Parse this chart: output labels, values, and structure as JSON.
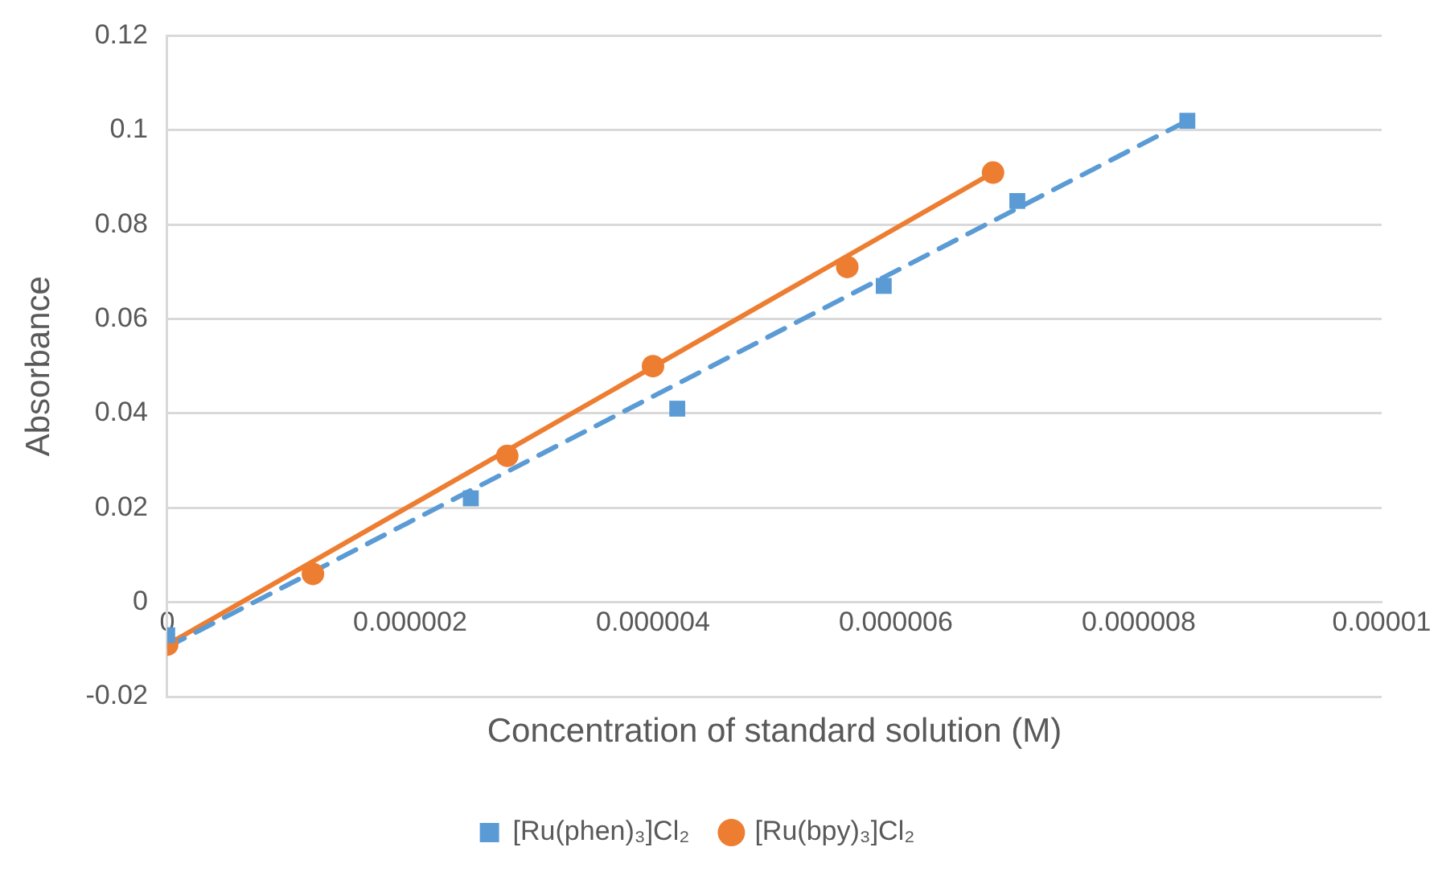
{
  "chart_data": {
    "type": "scatter",
    "xlabel": "Concentration of standard solution (M)",
    "ylabel": "Absorbance",
    "xlim": [
      0,
      1e-05
    ],
    "xticks": [
      0,
      {
        "value": 2e-06,
        "label": "0.000002"
      },
      {
        "value": 4e-06,
        "label": "0.000004"
      },
      {
        "value": 6e-06,
        "label": "0.000006"
      },
      {
        "value": 8e-06,
        "label": "0.000008"
      },
      {
        "value": 1e-05,
        "label": "0.00001"
      }
    ],
    "ylim": [
      -0.02,
      0.12
    ],
    "yticks": [
      -0.02,
      0,
      0.02,
      0.04,
      0.06,
      0.08,
      0.1,
      0.12
    ],
    "grid": "y",
    "legend": "bottom",
    "series": [
      {
        "name": "[Ru(phen)₃]Cl₂",
        "marker": "square",
        "color": "#5b9bd5",
        "x": [
          0,
          2.5e-06,
          4.2e-06,
          5.9e-06,
          7e-06,
          8.4e-06
        ],
        "values": [
          -0.007,
          0.022,
          0.041,
          0.067,
          0.085,
          0.102
        ]
      },
      {
        "name": "[Ru(bpy)₃]Cl₂",
        "marker": "circle",
        "color": "#ed7d31",
        "x": [
          0,
          1.2e-06,
          2.8e-06,
          4e-06,
          5.6e-06,
          6.8e-06
        ],
        "values": [
          -0.009,
          0.006,
          0.031,
          0.05,
          0.071,
          0.091
        ]
      },
      {
        "type": "line",
        "color": "#5b9bd5",
        "line_style": "dashed",
        "marker": "none",
        "x": [
          0,
          8.4e-06
        ],
        "values": [
          -0.0095,
          0.102
        ]
      },
      {
        "type": "line",
        "color": "#ed7d31",
        "line_style": "solid",
        "marker": "none",
        "x": [
          0,
          6.8e-06
        ],
        "values": [
          -0.009,
          0.091
        ]
      }
    ]
  }
}
